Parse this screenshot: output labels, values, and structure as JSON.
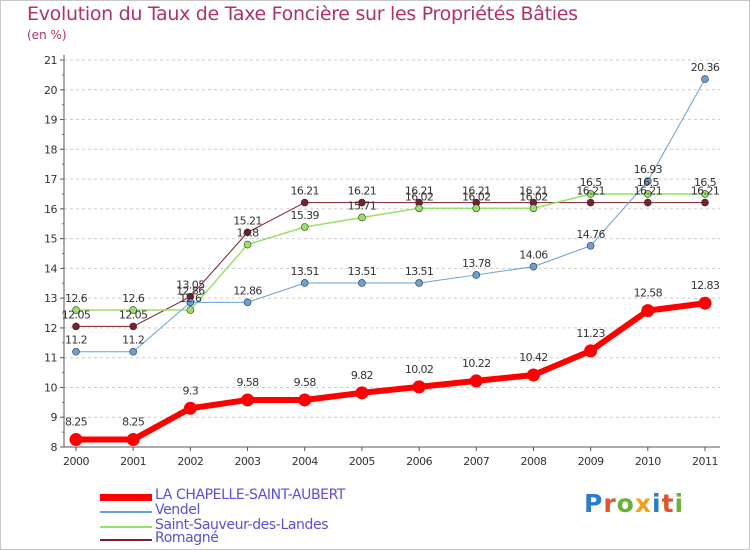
{
  "title": "Evolution du Taux de Taxe Foncière sur les Propriétés Bâties",
  "unit": "(en %)",
  "logo": {
    "text": "Proxiti",
    "colors": [
      "#2b7cc9",
      "#e0542f",
      "#6ab03c",
      "#f4a01c",
      "#2b7cc9",
      "#e0542f",
      "#6ab03c"
    ]
  },
  "colors": {
    "title": "#b0306a",
    "legend_text": "#5a4fd6",
    "grid": "#cccccc"
  },
  "chart_data": {
    "type": "line",
    "categories": [
      "2000",
      "2001",
      "2002",
      "2003",
      "2004",
      "2005",
      "2006",
      "2007",
      "2008",
      "2009",
      "2010",
      "2011"
    ],
    "ylim": [
      8,
      21
    ],
    "yticks": [
      "8",
      "9",
      "10",
      "11",
      "12",
      "13",
      "14",
      "15",
      "16",
      "17",
      "18",
      "19",
      "20",
      "21"
    ],
    "grid": "horizontal dashed",
    "legend_position": "bottom-left",
    "series": [
      {
        "name": "Romagné",
        "color": "#7a1f2b",
        "width": 1,
        "values": [
          12.05,
          12.05,
          13.05,
          15.21,
          16.21,
          16.21,
          16.21,
          16.21,
          16.21,
          16.21,
          16.21,
          16.21
        ],
        "labels": [
          "12.05",
          "12.05",
          "13.05",
          "15.21",
          "16.21",
          "16.21",
          "16.21",
          "16.21",
          "16.21",
          "16.21",
          "16.21",
          "16.21"
        ]
      },
      {
        "name": "Saint-Sauveur-des-Landes",
        "color": "#99e068",
        "width": 1.5,
        "values": [
          12.6,
          12.6,
          12.6,
          14.8,
          15.39,
          15.71,
          16.02,
          16.02,
          16.02,
          16.5,
          16.5,
          16.5
        ],
        "labels": [
          "12.6",
          "12.6",
          "12.6",
          "14.8",
          "15.39",
          "15.71",
          "16.02",
          "16.02",
          "16.02",
          "16.5",
          "16.5",
          "16.5"
        ]
      },
      {
        "name": "Vendel",
        "color": "#6a9fd4",
        "width": 1,
        "values": [
          11.2,
          11.2,
          12.86,
          12.86,
          13.51,
          13.51,
          13.51,
          13.78,
          14.06,
          14.76,
          16.93,
          20.36
        ],
        "labels": [
          "11.2",
          "11.2",
          "12.86",
          "12.86",
          "13.51",
          "13.51",
          "13.51",
          "13.78",
          "14.06",
          "14.76",
          "16.93",
          "20.36"
        ]
      },
      {
        "name": "LA CHAPELLE-SAINT-AUBERT",
        "color": "#ff0000",
        "width": 6,
        "values": [
          8.25,
          8.25,
          9.3,
          9.58,
          9.58,
          9.82,
          10.02,
          10.22,
          10.42,
          11.23,
          12.58,
          12.83
        ],
        "labels": [
          "8.25",
          "8.25",
          "9.3",
          "9.58",
          "9.58",
          "9.82",
          "10.02",
          "10.22",
          "10.42",
          "11.23",
          "12.58",
          "12.83"
        ]
      }
    ]
  },
  "legend": [
    {
      "label": "LA CHAPELLE-SAINT-AUBERT",
      "color": "#ff0000",
      "thickness": 7
    },
    {
      "label": "Vendel",
      "color": "#6a9fd4",
      "thickness": 2
    },
    {
      "label": "Saint-Sauveur-des-Landes",
      "color": "#99e068",
      "thickness": 2
    },
    {
      "label": "Romagné",
      "color": "#7a1f2b",
      "thickness": 2
    }
  ]
}
